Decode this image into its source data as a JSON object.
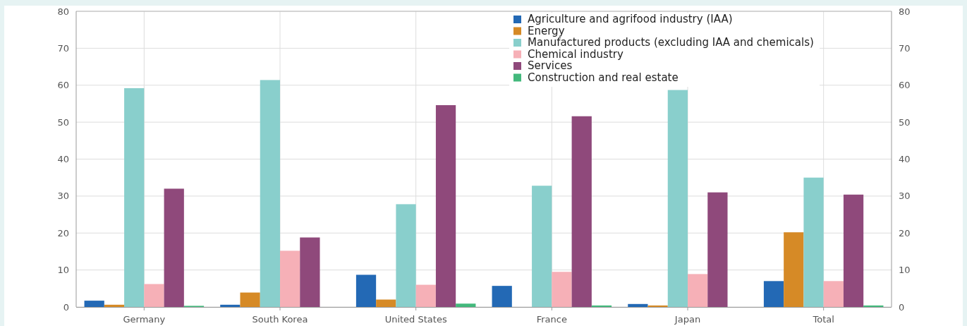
{
  "chart_data": {
    "type": "bar",
    "categories": [
      "Germany",
      "South Korea",
      "United States",
      "France",
      "Japan",
      "Total"
    ],
    "series": [
      {
        "name": "Agriculture and agrifood industry (IAA)",
        "color": "#2369b5",
        "values": [
          1.7,
          0.6,
          8.7,
          5.7,
          0.8,
          7
        ]
      },
      {
        "name": "Energy",
        "color": "#d68a26",
        "values": [
          0.6,
          3.9,
          2,
          0,
          0.4,
          20.2
        ]
      },
      {
        "name": "Manufactured products (excluding IAA and chemicals)",
        "color": "#89cfcc",
        "values": [
          59.2,
          61.4,
          27.8,
          32.8,
          58.7,
          35
        ]
      },
      {
        "name": "Chemical industry",
        "color": "#f6b0b7",
        "values": [
          6.2,
          15.2,
          6,
          9.5,
          8.9,
          7
        ]
      },
      {
        "name": "Services",
        "color": "#8f497b",
        "values": [
          32,
          18.8,
          54.6,
          51.6,
          31,
          30.4
        ]
      },
      {
        "name": "Construction and real estate",
        "color": "#43b97c",
        "values": [
          0.3,
          0,
          0.9,
          0.4,
          0,
          0.4
        ]
      }
    ],
    "ylim": [
      0,
      80
    ],
    "yticks": [
      0,
      10,
      20,
      30,
      40,
      50,
      60,
      70,
      80
    ],
    "y2lim": [
      0,
      80
    ],
    "y2ticks": [
      0,
      10,
      20,
      30,
      40,
      50,
      60,
      70,
      80
    ],
    "grid": true,
    "legend": "top right"
  }
}
